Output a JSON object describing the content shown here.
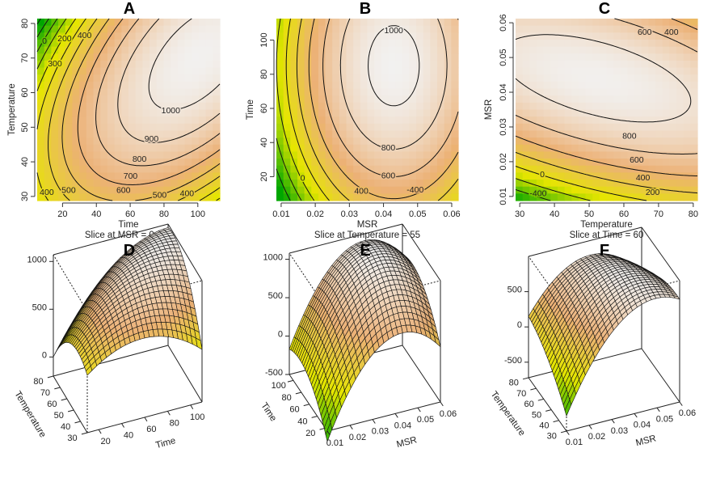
{
  "chart_data": [
    {
      "panel": "A",
      "type": "contour",
      "title": "A",
      "xlabel": "Time",
      "ylabel": "Temperature",
      "subtitle": "Slice at MSR = 0.035",
      "xlim": [
        5,
        113
      ],
      "ylim": [
        28.8,
        81.4
      ],
      "xticks": [
        "20",
        "40",
        "60",
        "80",
        "100"
      ],
      "yticks": [
        "30",
        "40",
        "50",
        "60",
        "70",
        "80"
      ],
      "levels": [
        -100,
        0,
        100,
        200,
        300,
        400,
        500,
        600,
        700,
        800,
        900,
        1000
      ],
      "contour_labels": [
        "0",
        "200",
        "300",
        "400",
        "400",
        "500",
        "600",
        "700",
        "800",
        "900",
        "1000",
        "500",
        "400"
      ],
      "colorscale": [
        "#00A600",
        "#E6E600",
        "#ECB176",
        "#F2F2F2"
      ]
    },
    {
      "panel": "B",
      "type": "contour",
      "title": "B",
      "xlabel": "MSR",
      "ylabel": "Time",
      "subtitle": "Slice at Temperature = 55",
      "xlim": [
        0.0086,
        0.0619
      ],
      "ylim": [
        6,
        112.6
      ],
      "xticks": [
        "0.01",
        "0.02",
        "0.03",
        "0.04",
        "0.05",
        "0.06"
      ],
      "yticks": [
        "20",
        "40",
        "60",
        "80",
        "100"
      ],
      "levels": [
        -600,
        -400,
        -200,
        0,
        200,
        400,
        600,
        800,
        1000
      ],
      "contour_labels": [
        "1000",
        "800",
        "600",
        "400",
        "0",
        "-400"
      ],
      "colorscale": [
        "#00A600",
        "#E6E600",
        "#ECB176",
        "#F2F2F2"
      ]
    },
    {
      "panel": "C",
      "type": "contour",
      "title": "C",
      "xlabel": "Temperature",
      "ylabel": "MSR",
      "subtitle": "Slice at Time = 60",
      "xlim": [
        28.8,
        81.2
      ],
      "ylim": [
        0.0088,
        0.0612
      ],
      "xticks": [
        "30",
        "40",
        "50",
        "60",
        "70",
        "80"
      ],
      "yticks": [
        "0.01",
        "0.02",
        "0.03",
        "0.04",
        "0.05",
        "0.06"
      ],
      "levels": [
        -400,
        -200,
        0,
        200,
        400,
        600,
        800
      ],
      "contour_labels": [
        "800",
        "600",
        "400",
        "200",
        "0",
        "-400",
        "600",
        "400"
      ],
      "colorscale": [
        "#00A600",
        "#E6E600",
        "#ECB176",
        "#F2F2F2"
      ]
    },
    {
      "panel": "D",
      "type": "surface",
      "title": "D",
      "xlabel": "Time",
      "ylabel": "Temperature",
      "xlim": [
        10,
        110
      ],
      "ylim": [
        30,
        80
      ],
      "zlim": [
        -200,
        1070
      ],
      "xticks": [
        "20",
        "40",
        "60",
        "80",
        "100"
      ],
      "yticks": [
        "30",
        "40",
        "50",
        "60",
        "70",
        "80"
      ],
      "zticks": [
        "0",
        "500",
        "1000"
      ]
    },
    {
      "panel": "E",
      "type": "surface",
      "title": "E",
      "xlabel": "MSR",
      "ylabel": "Time",
      "xlim": [
        0.01,
        0.06
      ],
      "ylim": [
        15,
        110
      ],
      "zlim": [
        -500,
        1080
      ],
      "xticks": [
        "0.01",
        "0.02",
        "0.03",
        "0.04",
        "0.05",
        "0.06"
      ],
      "yticks": [
        "20",
        "40",
        "60",
        "80",
        "100"
      ],
      "zticks": [
        "-500",
        "0",
        "500",
        "1000"
      ]
    },
    {
      "panel": "F",
      "type": "surface",
      "title": "F",
      "xlabel": "MSR",
      "ylabel": "Temperature",
      "xlim": [
        0.01,
        0.06
      ],
      "ylim": [
        30,
        80
      ],
      "zlim": [
        -720,
        1000
      ],
      "xticks": [
        "0.01",
        "0.02",
        "0.03",
        "0.04",
        "0.05",
        "0.06"
      ],
      "yticks": [
        "30",
        "40",
        "50",
        "60",
        "70",
        "80"
      ],
      "zticks": [
        "-500",
        "0",
        "500"
      ]
    }
  ]
}
